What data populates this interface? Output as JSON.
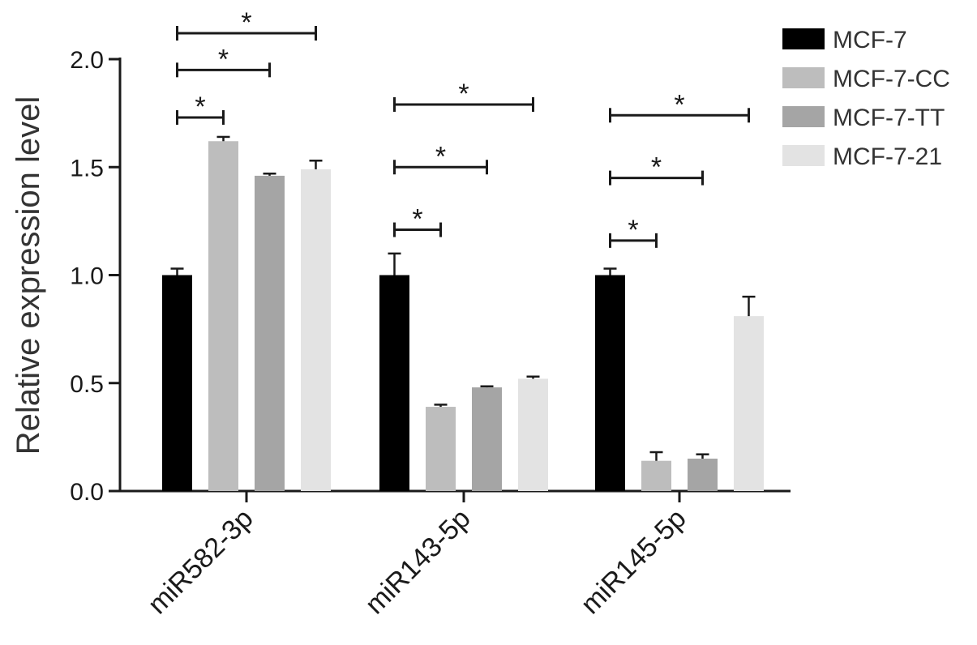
{
  "chart_data": {
    "type": "bar",
    "title": "",
    "xlabel": "",
    "ylabel": "Relative expression level",
    "ylim": [
      0,
      2.0
    ],
    "yticks": [
      "0.0",
      "0.5",
      "1.0",
      "1.5",
      "2.0"
    ],
    "categories": [
      "miR582-3p",
      "miR143-5p",
      "miR145-5p"
    ],
    "legend_position": "top-right",
    "series": [
      {
        "name": "MCF-7",
        "color": "#000000",
        "values": [
          1.0,
          1.0,
          1.0
        ],
        "errors": [
          0.03,
          0.1,
          0.03
        ]
      },
      {
        "name": "MCF-7-CC",
        "color": "#bdbdbd",
        "values": [
          1.62,
          0.39,
          0.14
        ],
        "errors": [
          0.02,
          0.01,
          0.04
        ]
      },
      {
        "name": "MCF-7-TT",
        "color": "#a5a5a5",
        "values": [
          1.46,
          0.48,
          0.15
        ],
        "errors": [
          0.01,
          0.005,
          0.02
        ]
      },
      {
        "name": "MCF-7-21",
        "color": "#e3e3e3",
        "values": [
          1.49,
          0.52,
          0.81
        ],
        "errors": [
          0.04,
          0.01,
          0.09
        ]
      }
    ],
    "significance": [
      {
        "category": 0,
        "from": 0,
        "to": 1,
        "level": 1.73,
        "label": "*"
      },
      {
        "category": 0,
        "from": 0,
        "to": 2,
        "level": 1.95,
        "label": "*"
      },
      {
        "category": 0,
        "from": 0,
        "to": 3,
        "level": 2.12,
        "label": "*"
      },
      {
        "category": 1,
        "from": 0,
        "to": 1,
        "level": 1.21,
        "label": "*"
      },
      {
        "category": 1,
        "from": 0,
        "to": 2,
        "level": 1.5,
        "label": "*"
      },
      {
        "category": 1,
        "from": 0,
        "to": 3,
        "level": 1.79,
        "label": "*"
      },
      {
        "category": 2,
        "from": 0,
        "to": 1,
        "level": 1.16,
        "label": "*"
      },
      {
        "category": 2,
        "from": 0,
        "to": 2,
        "level": 1.45,
        "label": "*"
      },
      {
        "category": 2,
        "from": 0,
        "to": 3,
        "level": 1.74,
        "label": "*"
      }
    ]
  }
}
